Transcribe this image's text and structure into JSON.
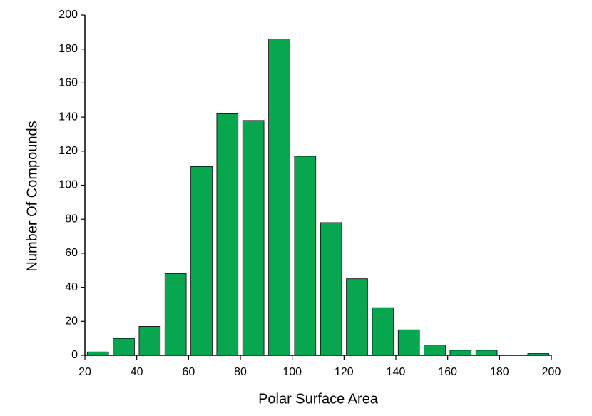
{
  "chart_data": {
    "type": "histogram",
    "xlabel": "Polar Surface Area",
    "ylabel": "Number Of Compounds",
    "bins": [
      20,
      30,
      40,
      50,
      60,
      70,
      80,
      90,
      100,
      110,
      120,
      130,
      140,
      150,
      160,
      170,
      180,
      190,
      200
    ],
    "counts": [
      2,
      10,
      17,
      48,
      111,
      142,
      138,
      186,
      117,
      78,
      45,
      28,
      15,
      6,
      3,
      3,
      0,
      1
    ],
    "color": "#07a64f",
    "xlim": [
      20,
      200
    ],
    "xticks": [
      20,
      40,
      60,
      80,
      100,
      120,
      140,
      160,
      180,
      200
    ],
    "ylim": [
      0,
      200
    ],
    "yticks": [
      0,
      20,
      40,
      60,
      80,
      100,
      120,
      140,
      160,
      180,
      200
    ]
  }
}
